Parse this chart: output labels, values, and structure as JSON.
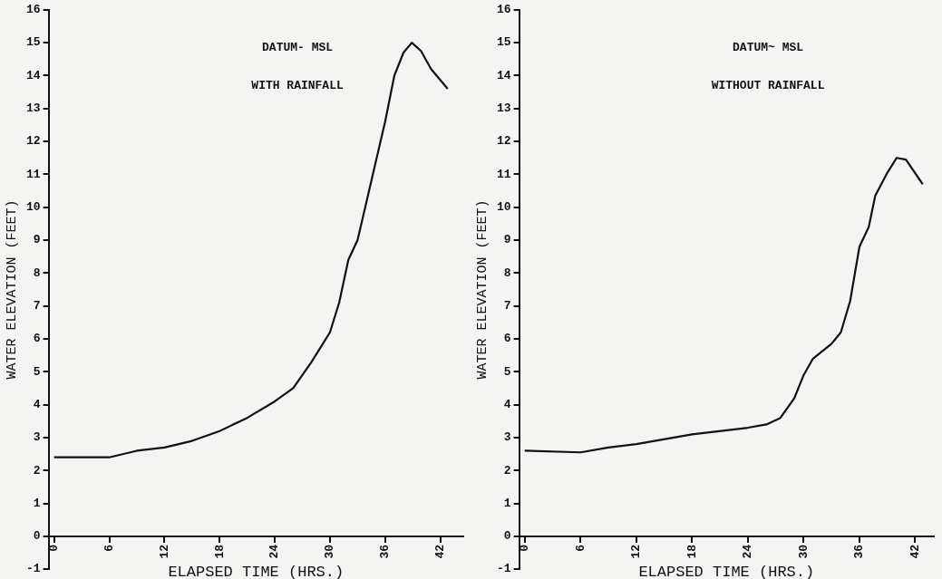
{
  "chart_data": [
    {
      "type": "line",
      "xlabel": "ELAPSED TIME (HRS.)",
      "ylabel": "WATER ELEVATION (FEET)",
      "annotations": [
        "DATUM- MSL",
        "WITH RAINFALL"
      ],
      "xlim": [
        -0.6,
        44.5
      ],
      "xticks": [
        0,
        6,
        12,
        18,
        24,
        30,
        36,
        42
      ],
      "ylim": [
        -1,
        16
      ],
      "yticks": [
        -1,
        0,
        1,
        2,
        3,
        4,
        5,
        6,
        7,
        8,
        9,
        10,
        11,
        12,
        13,
        14,
        15,
        16
      ],
      "marker": "none",
      "series": [
        {
          "color": "#111111",
          "x": [
            0,
            6,
            9,
            12,
            15,
            18,
            21,
            24,
            26,
            28,
            30,
            31,
            32,
            33,
            34,
            35,
            36,
            37,
            38,
            38.9,
            39.9,
            41,
            42.8
          ],
          "values": [
            2.4,
            2.4,
            2.6,
            2.7,
            2.9,
            3.2,
            3.6,
            4.1,
            4.5,
            5.3,
            6.2,
            7.1,
            8.4,
            9.0,
            10.2,
            11.4,
            12.6,
            14.0,
            14.7,
            15.0,
            14.75,
            14.2,
            13.6
          ]
        }
      ]
    },
    {
      "type": "line",
      "xlabel": "ELAPSED TIME (HRS.)",
      "ylabel": "WATER ELEVATION (FEET)",
      "annotations": [
        "DATUM~ MSL",
        "WITHOUT RAINFALL"
      ],
      "xlim": [
        -0.6,
        44
      ],
      "xticks": [
        0,
        6,
        12,
        18,
        24,
        30,
        36,
        42
      ],
      "ylim": [
        -1,
        16
      ],
      "yticks": [
        -1,
        0,
        1,
        2,
        3,
        4,
        5,
        6,
        7,
        8,
        9,
        10,
        11,
        12,
        13,
        14,
        15,
        16
      ],
      "marker": "none",
      "series": [
        {
          "color": "#111111",
          "x": [
            0,
            6,
            9,
            12,
            18,
            24,
            26,
            27.5,
            29,
            30,
            31,
            33,
            34,
            35,
            36,
            37,
            37.7,
            39,
            40,
            41,
            42.8
          ],
          "values": [
            2.6,
            2.55,
            2.7,
            2.8,
            3.1,
            3.3,
            3.4,
            3.6,
            4.2,
            4.9,
            5.4,
            5.85,
            6.2,
            7.15,
            8.8,
            9.4,
            10.35,
            11.05,
            11.5,
            11.45,
            10.7
          ]
        }
      ]
    }
  ]
}
